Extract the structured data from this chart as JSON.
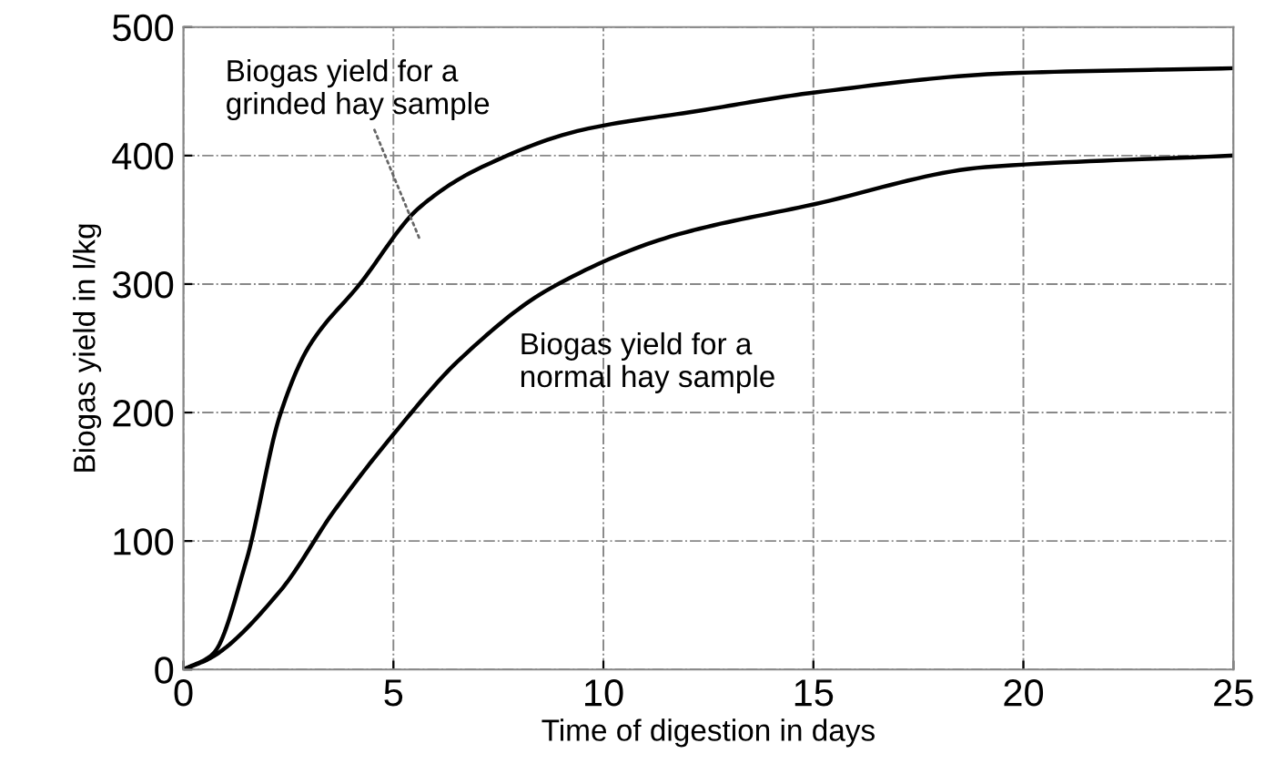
{
  "chart_data": {
    "type": "line",
    "xlabel": "Time of digestion in days",
    "ylabel": "Biogas yield in l/kg",
    "xlim": [
      0,
      25
    ],
    "ylim": [
      0,
      500
    ],
    "xticks": [
      0,
      5,
      10,
      15,
      20,
      25
    ],
    "yticks": [
      0,
      100,
      200,
      300,
      400,
      500
    ],
    "grid": true,
    "marker": "none",
    "line_style": "solid",
    "series": [
      {
        "color": "#000000",
        "x": [
          0,
          0.7,
          1.5,
          2.3,
          3.0,
          4.2,
          5.6,
          7.1,
          9.5,
          12.3,
          15,
          19.6,
          25
        ],
        "values": [
          0,
          12,
          85,
          198,
          252,
          300,
          359,
          391,
          420,
          435,
          449,
          464,
          468
        ]
      },
      {
        "color": "#000000",
        "x": [
          0,
          0.7,
          2.3,
          3.6,
          5,
          6.6,
          8.7,
          11.6,
          15,
          19.1,
          25
        ],
        "values": [
          0,
          10,
          61,
          124,
          183,
          242,
          296,
          337,
          362,
          391,
          400
        ]
      }
    ],
    "annotations": [
      "Biogas yield for a\ngrinded hay sample",
      "Biogas yield for a\nnormal hay sample"
    ]
  }
}
